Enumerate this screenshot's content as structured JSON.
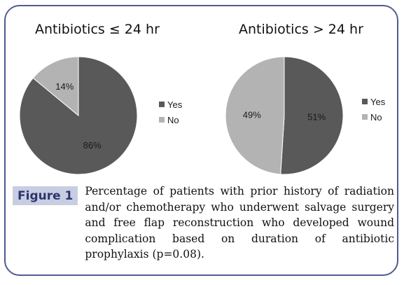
{
  "colors": {
    "yes": "#595959",
    "no": "#b3b3b3",
    "frame": "#4f5b93",
    "label_bg": "#c9cde2"
  },
  "chart_data": [
    {
      "type": "pie",
      "title": "Antibiotics ≤ 24 hr",
      "categories": [
        "Yes",
        "No"
      ],
      "values": [
        86,
        14
      ],
      "labels": [
        "86%",
        "14%"
      ],
      "legend": "right"
    },
    {
      "type": "pie",
      "title": "Antibiotics > 24 hr",
      "categories": [
        "Yes",
        "No"
      ],
      "values": [
        51,
        49
      ],
      "labels": [
        "51%",
        "49%"
      ],
      "legend": "right"
    }
  ],
  "figure": {
    "label": "Figure 1",
    "caption": "Percentage of patients with prior history of radiation and/or chemotherapy who underwent salvage surgery and free flap reconstruction who developed wound complication based on duration of antibiotic prophylaxis (p=0.08)."
  }
}
